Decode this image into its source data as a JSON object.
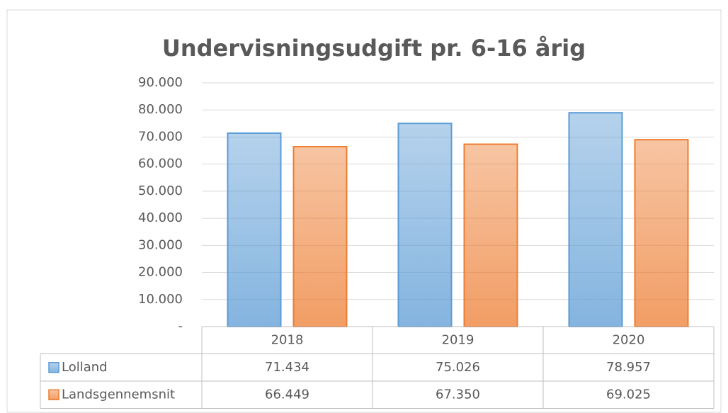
{
  "chart_data": {
    "type": "bar",
    "title": "Undervisningsudgift  pr. 6-16 årig",
    "categories": [
      "2018",
      "2019",
      "2020"
    ],
    "series": [
      {
        "name": "Lolland",
        "color": "#5b9bd5",
        "values": [
          71434,
          75026,
          78957
        ],
        "value_labels": [
          "71.434",
          "75.026",
          "78.957"
        ]
      },
      {
        "name": "Landsgennemsnit",
        "color": "#ed7d31",
        "values": [
          66449,
          67350,
          69025
        ],
        "value_labels": [
          "66.449",
          "67.350",
          "69.025"
        ]
      }
    ],
    "ylim": [
      0,
      90000
    ],
    "yticks": [
      {
        "value": 0,
        "label": "-"
      },
      {
        "value": 10000,
        "label": "10.000"
      },
      {
        "value": 20000,
        "label": "20.000"
      },
      {
        "value": 30000,
        "label": "30.000"
      },
      {
        "value": 40000,
        "label": "40.000"
      },
      {
        "value": 50000,
        "label": "50.000"
      },
      {
        "value": 60000,
        "label": "60.000"
      },
      {
        "value": 70000,
        "label": "70.000"
      },
      {
        "value": 80000,
        "label": "80.000"
      },
      {
        "value": 90000,
        "label": "90.000"
      }
    ],
    "grid": true,
    "data_table": true
  }
}
